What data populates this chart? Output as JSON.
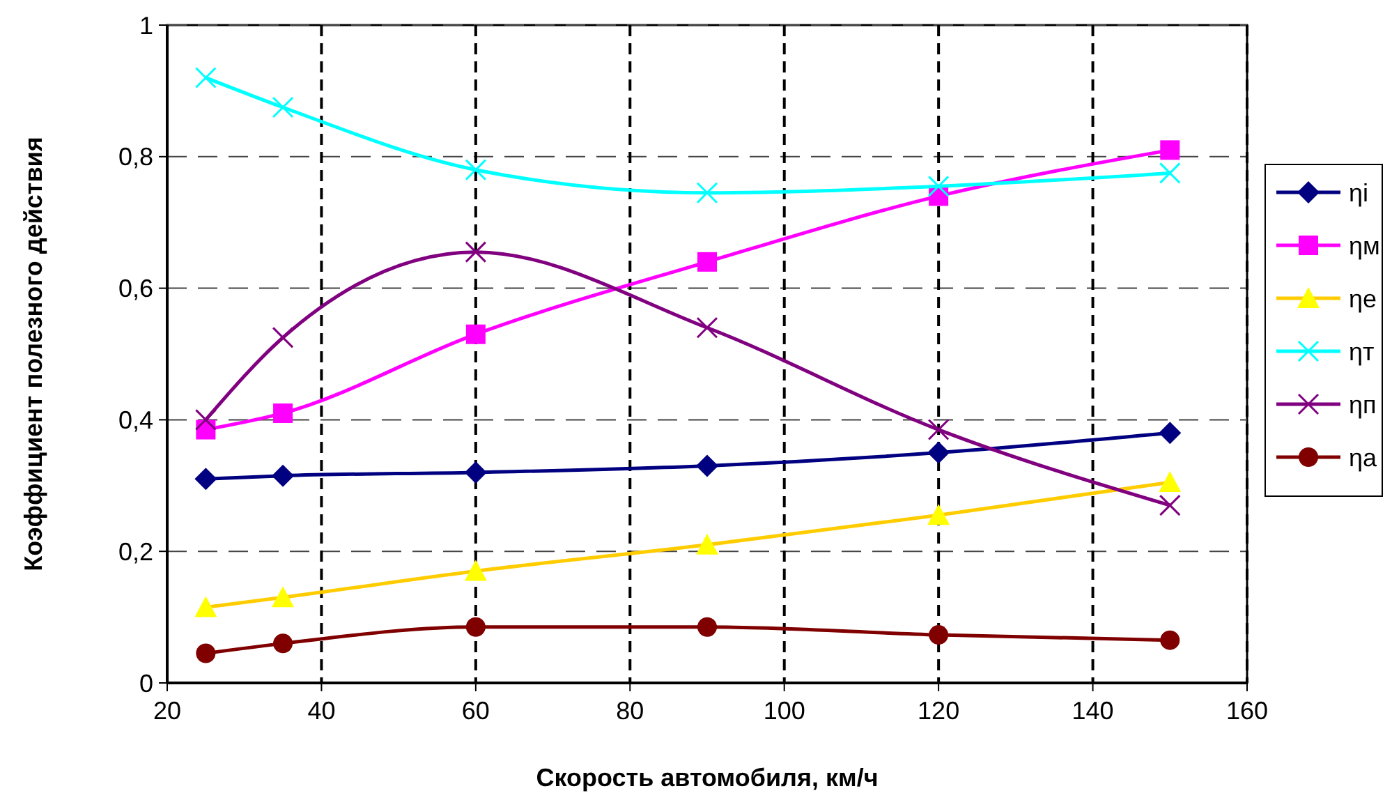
{
  "chart_data": {
    "type": "line",
    "xlabel": "Скорость автомобиля, км/ч",
    "ylabel": "Коэффициент полезного действия",
    "x": [
      25,
      35,
      60,
      90,
      120,
      150
    ],
    "xlim": [
      20,
      160
    ],
    "xticks": [
      20,
      40,
      60,
      80,
      100,
      120,
      140,
      160
    ],
    "ylim": [
      0,
      1
    ],
    "yticks": [
      0,
      {
        "value": 0.2,
        "label": "0,2"
      },
      {
        "value": 0.4,
        "label": "0,4"
      },
      {
        "value": 0.6,
        "label": "0,6"
      },
      {
        "value": 0.8,
        "label": "0,8"
      },
      1
    ],
    "grid": true,
    "legend": "right",
    "series": [
      {
        "name": "ηi",
        "color": "#000080",
        "marker": "diamond",
        "values": [
          0.31,
          0.315,
          0.32,
          0.33,
          0.35,
          0.38
        ]
      },
      {
        "name": "ηм",
        "color": "#ff00ff",
        "marker": "square",
        "values": [
          0.385,
          0.41,
          0.53,
          0.64,
          0.74,
          0.81
        ]
      },
      {
        "name": "ηe",
        "color": "#ffcc00",
        "marker": "triangle",
        "values": [
          0.115,
          0.13,
          0.17,
          0.21,
          0.255,
          0.305
        ]
      },
      {
        "name": "ηт",
        "color": "#00ffff",
        "marker": "cross",
        "values": [
          0.92,
          0.875,
          0.78,
          0.745,
          0.755,
          0.775
        ]
      },
      {
        "name": "ηп",
        "color": "#800080",
        "marker": "cross",
        "values": [
          0.4,
          0.525,
          0.655,
          0.54,
          0.385,
          0.27
        ]
      },
      {
        "name": "ηa",
        "color": "#800000",
        "marker": "circle",
        "values": [
          0.045,
          0.06,
          0.085,
          0.085,
          0.073,
          0.065
        ]
      }
    ]
  }
}
